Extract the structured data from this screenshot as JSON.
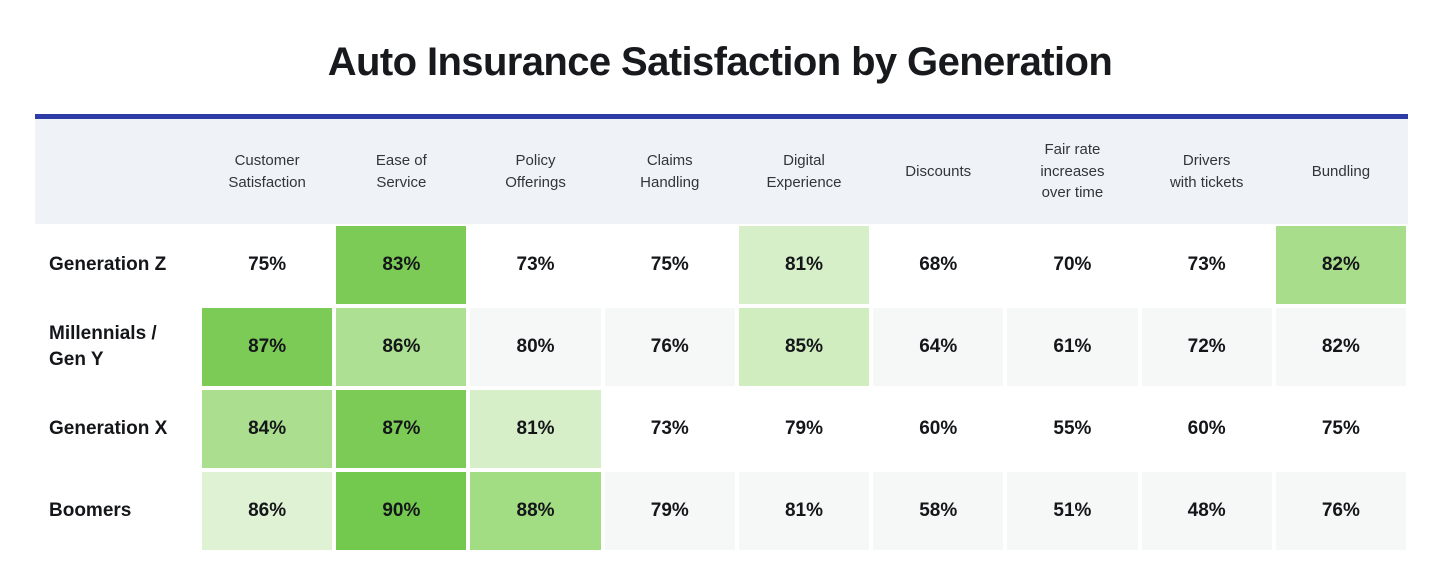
{
  "title": "Auto Insurance Satisfaction by Generation",
  "colors": {
    "accent_line": "#2E3CA8",
    "header_bg": "#EFF2F6",
    "header_text": "#32363C",
    "title_text": "#17191D",
    "body_text": "#141619",
    "stripe_row_bg": "#F6F7F7",
    "plain_row_bg": "#FFFFFF",
    "highlight_strong_green": "#7CCB57",
    "highlight_medium_green": "#A8DE8B",
    "highlight_light_green": "#D6EFC8",
    "highlight_faint_green": "#DFF2D4"
  },
  "chart_data": {
    "type": "heatmap",
    "title": "Auto Insurance Satisfaction by Generation",
    "unit": "%",
    "legend_position": "none",
    "columns": [
      "Customer\nSatisfaction",
      "Ease of\nService",
      "Policy\nOfferings",
      "Claims\nHandling",
      "Digital\nExperience",
      "Discounts",
      "Fair rate\nincreases\nover time",
      "Drivers\nwith tickets",
      "Bundling"
    ],
    "rows": [
      {
        "label": "Generation Z",
        "striped": false,
        "values": [
          75,
          83,
          73,
          75,
          81,
          68,
          70,
          73,
          82
        ],
        "cells": [
          "75%",
          "83%",
          "73%",
          "75%",
          "81%",
          "68%",
          "70%",
          "73%",
          "82%"
        ],
        "cell_colors": [
          null,
          "#7CCB57",
          null,
          null,
          "#D6EFC8",
          null,
          null,
          null,
          "#A8DE8B"
        ]
      },
      {
        "label": "Millennials /\nGen Y",
        "striped": true,
        "values": [
          87,
          86,
          80,
          76,
          85,
          64,
          61,
          72,
          82
        ],
        "cells": [
          "87%",
          "86%",
          "80%",
          "76%",
          "85%",
          "64%",
          "61%",
          "72%",
          "82%"
        ],
        "cell_colors": [
          "#7CCB57",
          "#AEE094",
          null,
          null,
          "#CFEDBE",
          null,
          null,
          null,
          null
        ]
      },
      {
        "label": "Generation X",
        "striped": false,
        "values": [
          84,
          87,
          81,
          73,
          79,
          60,
          55,
          60,
          75
        ],
        "cells": [
          "84%",
          "87%",
          "81%",
          "73%",
          "79%",
          "60%",
          "55%",
          "60%",
          "75%"
        ],
        "cell_colors": [
          "#ABDF8F",
          "#7CCB57",
          "#D6EFC8",
          null,
          null,
          null,
          null,
          null,
          null
        ]
      },
      {
        "label": "Boomers",
        "striped": true,
        "values": [
          86,
          90,
          88,
          79,
          81,
          58,
          51,
          48,
          76
        ],
        "cells": [
          "86%",
          "90%",
          "88%",
          "79%",
          "81%",
          "58%",
          "51%",
          "48%",
          "76%"
        ],
        "cell_colors": [
          "#DFF2D4",
          "#73C94E",
          "#A2DC83",
          null,
          null,
          null,
          null,
          null,
          null
        ]
      }
    ]
  }
}
